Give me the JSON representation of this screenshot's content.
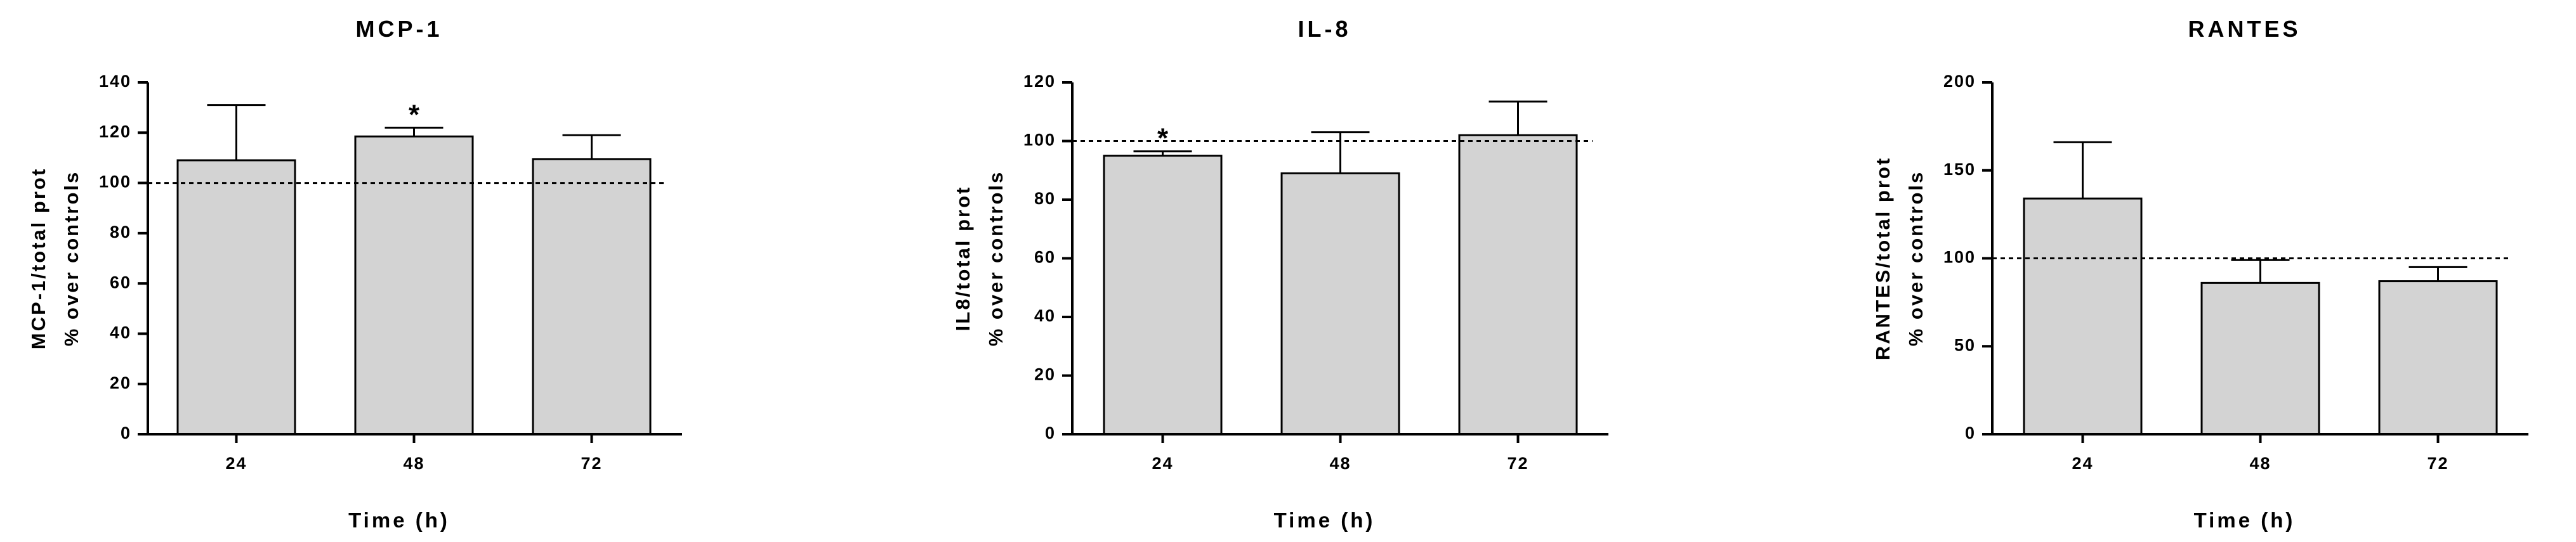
{
  "chart_data": [
    {
      "type": "bar",
      "title": "MCP-1",
      "ylabel_lines": [
        "MCP-1/total prot",
        "% over controls"
      ],
      "xlabel": "Time (h)",
      "categories": [
        "24",
        "48",
        "72"
      ],
      "values": [
        109,
        118.5,
        109.5
      ],
      "errors": [
        22,
        3.5,
        9.5
      ],
      "significance": [
        "",
        "*",
        ""
      ],
      "reference_line": 100,
      "ylim": [
        0,
        140
      ],
      "yticks": [
        0,
        20,
        40,
        60,
        80,
        100,
        120,
        140
      ],
      "bar_color": "#d3d3d3"
    },
    {
      "type": "bar",
      "title": "IL-8",
      "ylabel_lines": [
        "IL8/total prot",
        "% over controls"
      ],
      "xlabel": "Time (h)",
      "categories": [
        "24",
        "48",
        "72"
      ],
      "values": [
        95,
        89,
        102
      ],
      "errors": [
        1.5,
        14,
        11.5
      ],
      "significance": [
        "*",
        "",
        ""
      ],
      "reference_line": 100,
      "ylim": [
        0,
        120
      ],
      "yticks": [
        0,
        20,
        40,
        60,
        80,
        100,
        120
      ],
      "bar_color": "#d3d3d3"
    },
    {
      "type": "bar",
      "title": "RANTES",
      "ylabel_lines": [
        "RANTES/total prot",
        "% over controls"
      ],
      "xlabel": "Time (h)",
      "categories": [
        "24",
        "48",
        "72"
      ],
      "values": [
        134,
        86,
        87
      ],
      "errors": [
        32,
        13,
        8
      ],
      "significance": [
        "",
        "",
        ""
      ],
      "reference_line": 100,
      "ylim": [
        0,
        200
      ],
      "yticks": [
        0,
        50,
        100,
        150,
        200
      ],
      "bar_color": "#d3d3d3"
    }
  ]
}
